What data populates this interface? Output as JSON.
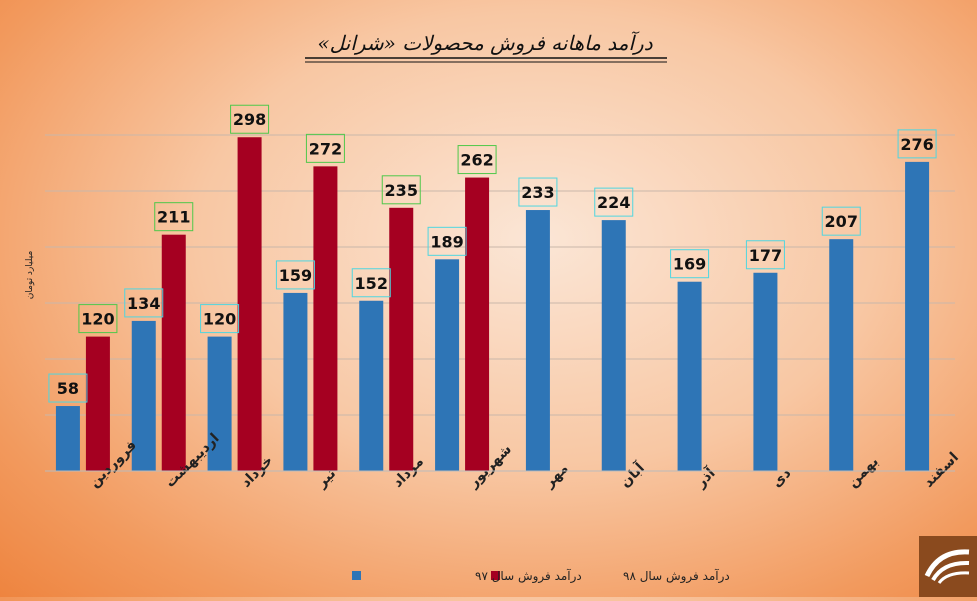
{
  "chart_data": {
    "type": "bar",
    "title": "درآمد ماهانه فروش محصولات «شرانل»",
    "ylabel": "میلیارد تومان",
    "xlabel": "",
    "categories": [
      "فروردین",
      "اردیبهشت",
      "خرداد",
      "تیر",
      "مرداد",
      "شهریور",
      "مهر",
      "آبان",
      "آذر",
      "دی",
      "بهمن",
      "اسفند"
    ],
    "series": [
      {
        "name": "درآمد فروش سال ۹۷",
        "color": "#2e75b6",
        "label_border": "#4fd6e0",
        "values": [
          58,
          134,
          120,
          159,
          152,
          189,
          233,
          224,
          169,
          177,
          207,
          276
        ]
      },
      {
        "name": "درآمد فروش سال ۹۸",
        "color": "#a50021",
        "label_border": "#4fc84a",
        "values": [
          120,
          211,
          298,
          272,
          235,
          262,
          null,
          null,
          null,
          null,
          null,
          null
        ]
      }
    ],
    "ylim": [
      0,
      300
    ],
    "grid": true,
    "legend": "bottom"
  }
}
